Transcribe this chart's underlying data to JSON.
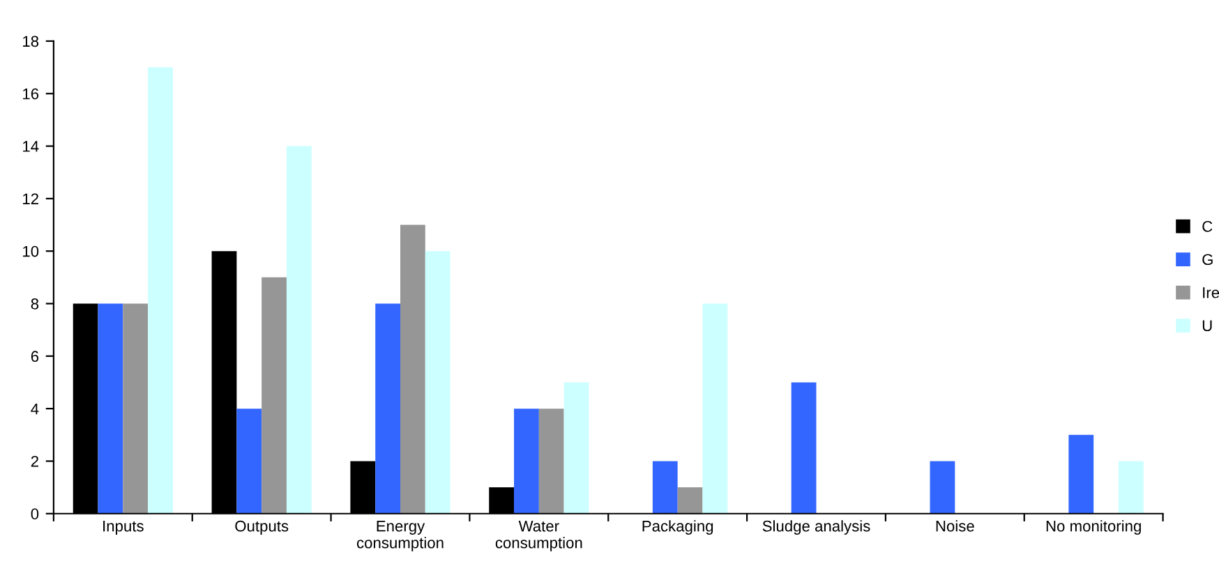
{
  "chart_data": {
    "type": "bar",
    "categories": [
      "Inputs",
      "Outputs",
      "Energy\nconsumption",
      "Water\nconsumption",
      "Packaging",
      "Sludge analysis",
      "Noise",
      "No monitoring"
    ],
    "series": [
      {
        "name": "C",
        "color": "#000000",
        "values": [
          8,
          10,
          2,
          1,
          0,
          0,
          0,
          0
        ]
      },
      {
        "name": "G",
        "color": "#3366ff",
        "values": [
          8,
          4,
          8,
          4,
          2,
          5,
          2,
          3
        ]
      },
      {
        "name": "Ire",
        "color": "#969696",
        "values": [
          8,
          9,
          11,
          4,
          1,
          0,
          0,
          0
        ]
      },
      {
        "name": "U",
        "color": "#ccffff",
        "values": [
          17,
          14,
          10,
          5,
          8,
          0,
          0,
          2
        ]
      }
    ],
    "ylim": [
      0,
      18
    ],
    "yticks": [
      0,
      2,
      4,
      6,
      8,
      10,
      12,
      14,
      16,
      18
    ],
    "grid": false,
    "legend": "right"
  }
}
